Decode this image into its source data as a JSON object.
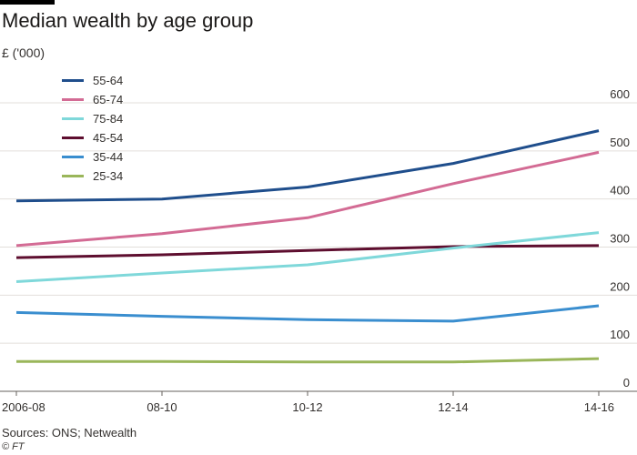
{
  "chart_data": {
    "type": "line",
    "title": "Median wealth by age group",
    "ylabel": "£ ('000)",
    "xlabel": "",
    "categories": [
      "2006-08",
      "08-10",
      "10-12",
      "12-14",
      "14-16"
    ],
    "yticks": [
      0,
      100,
      200,
      300,
      400,
      500,
      600
    ],
    "ylim": [
      0,
      600
    ],
    "grid": true,
    "legend_position": "top-left",
    "series": [
      {
        "name": "55-64",
        "color": "#1f4e8c",
        "values": [
          396,
          400,
          425,
          474,
          542
        ]
      },
      {
        "name": "65-74",
        "color": "#d36b94",
        "values": [
          303,
          328,
          361,
          432,
          497
        ]
      },
      {
        "name": "75-84",
        "color": "#7fd8da",
        "values": [
          228,
          246,
          263,
          298,
          330
        ]
      },
      {
        "name": "45-54",
        "color": "#5e0e2f",
        "values": [
          278,
          284,
          293,
          301,
          303
        ]
      },
      {
        "name": "35-44",
        "color": "#3a8ecf",
        "values": [
          164,
          156,
          149,
          146,
          178
        ]
      },
      {
        "name": "25-34",
        "color": "#9ab65a",
        "values": [
          62,
          62,
          61,
          61,
          68
        ]
      }
    ]
  },
  "footer": {
    "source": "Sources: ONS; Netwealth",
    "credit": "© FT"
  },
  "colors": {
    "grid": "#e3dfdb",
    "axis": "#66605c",
    "text": "#33302e"
  }
}
